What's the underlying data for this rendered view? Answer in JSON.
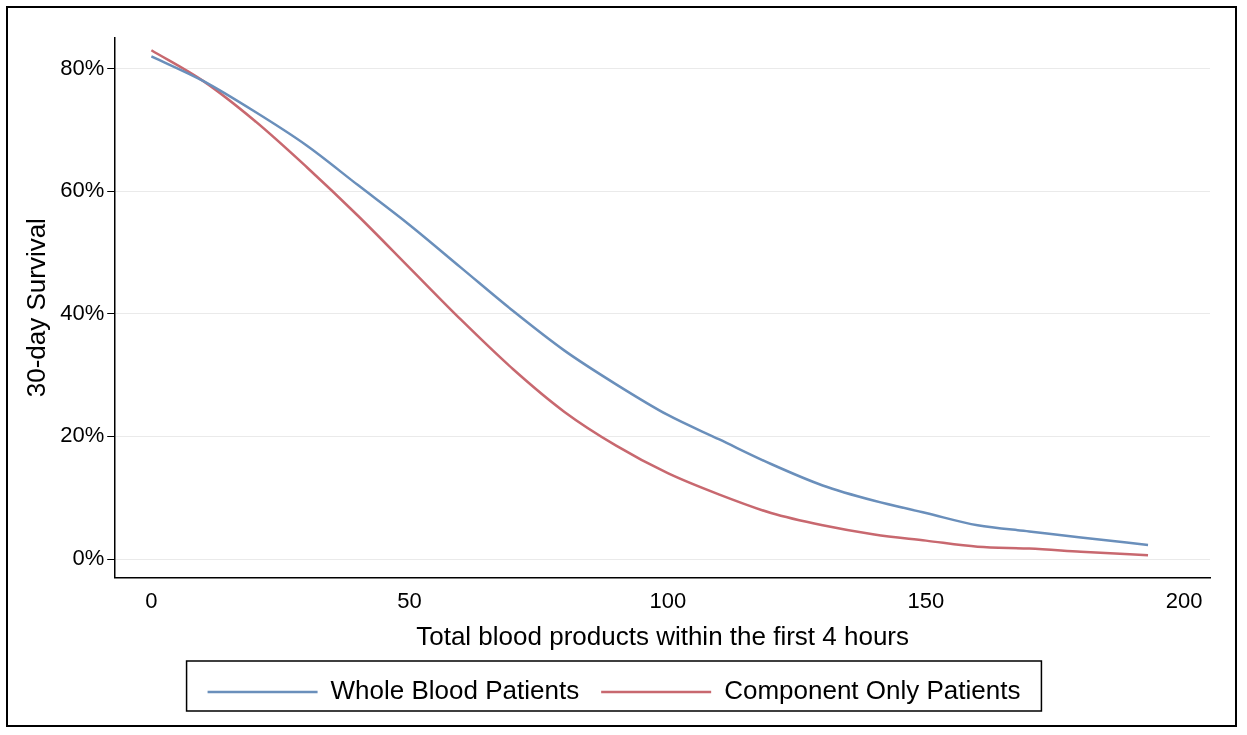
{
  "chart_data": {
    "type": "line",
    "xlabel": "Total blood products within the first 4 hours",
    "ylabel": "30-day Survival",
    "xlim": [
      -7,
      205
    ],
    "ylim": [
      -3,
      85
    ],
    "xticks": [
      0,
      50,
      100,
      150,
      200
    ],
    "yticks": [
      {
        "value": 0,
        "label": "0%"
      },
      {
        "value": 20,
        "label": "20%"
      },
      {
        "value": 40,
        "label": "40%"
      },
      {
        "value": 60,
        "label": "60%"
      },
      {
        "value": 80,
        "label": "80%"
      }
    ],
    "grid": "y",
    "legend": "bottom",
    "series": [
      {
        "name": "Whole Blood Patients",
        "color": "#6a8fbb",
        "x": [
          0,
          10,
          20,
          30,
          40,
          50,
          60,
          70,
          80,
          90,
          100,
          110,
          120,
          130,
          140,
          150,
          160,
          170,
          180,
          193
        ],
        "values": [
          82,
          78,
          73,
          67.5,
          61,
          54.5,
          47.5,
          40.5,
          34,
          28.5,
          23.5,
          19.5,
          15.5,
          12,
          9.5,
          7.5,
          5.5,
          4.5,
          3.5,
          2.3
        ]
      },
      {
        "name": "Component Only Patients",
        "color": "#c8686f",
        "x": [
          0,
          10,
          20,
          30,
          40,
          50,
          60,
          70,
          80,
          90,
          100,
          110,
          120,
          130,
          140,
          150,
          160,
          170,
          180,
          193
        ],
        "values": [
          83,
          78,
          71.5,
          64,
          56,
          47.5,
          39,
          31,
          24,
          18.5,
          14,
          10.5,
          7.5,
          5.5,
          4,
          3,
          2,
          1.7,
          1.2,
          0.6
        ]
      }
    ]
  }
}
